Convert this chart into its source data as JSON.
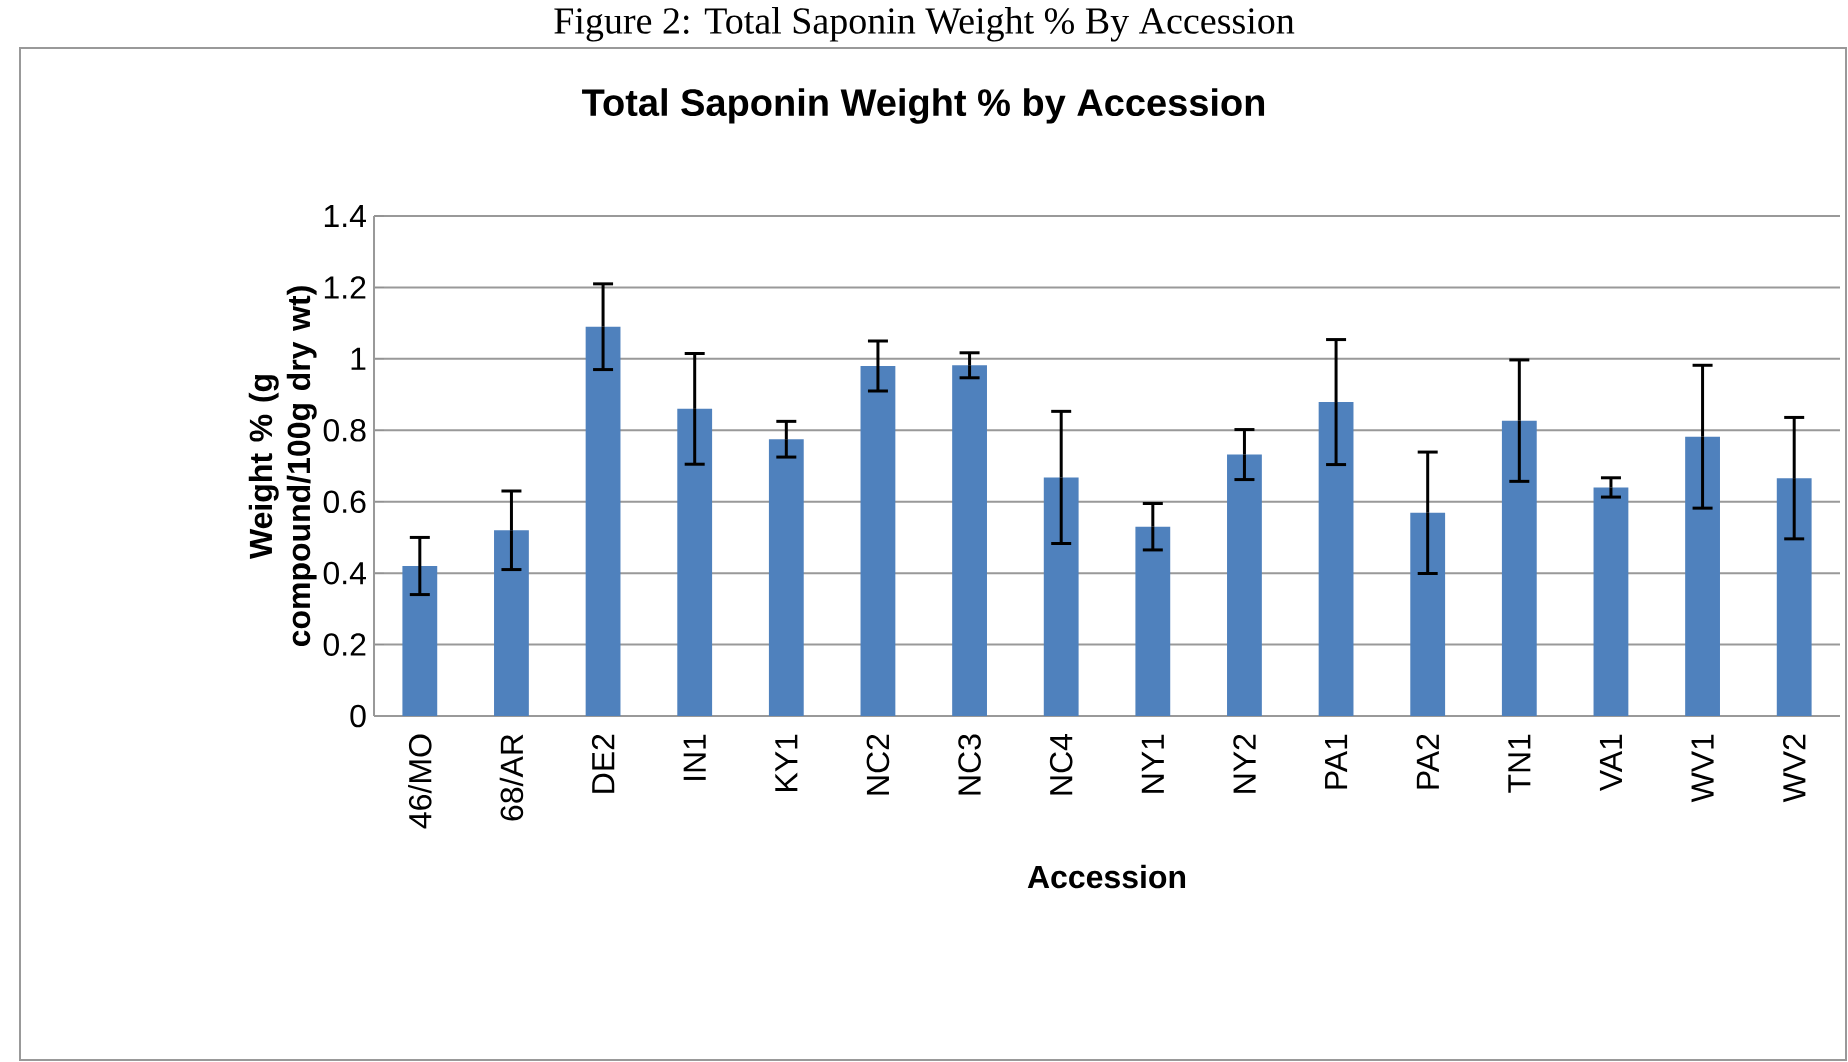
{
  "chart_data": {
    "type": "bar",
    "title": "Total Saponin Weight % by Accession",
    "xlabel": "Accession",
    "ylabel": "Weight %  (g compound/100g dry wt)",
    "annotations": [
      "Figure 2: Total Saponin Weight % By Accession"
    ],
    "categories": [
      "46/MO",
      "68/AR",
      "DE2",
      "IN1",
      "KY1",
      "NC2",
      "NC3",
      "NC4",
      "NY1",
      "NY2",
      "PA1",
      "PA2",
      "TN1",
      "VA1",
      "WV1",
      "WV2"
    ],
    "values": [
      0.42,
      0.52,
      1.09,
      0.86,
      0.775,
      0.98,
      0.982,
      0.668,
      0.53,
      0.732,
      0.879,
      0.569,
      0.827,
      0.64,
      0.782,
      0.666
    ],
    "errors": [
      0.08,
      0.11,
      0.12,
      0.155,
      0.05,
      0.07,
      0.035,
      0.185,
      0.065,
      0.07,
      0.175,
      0.17,
      0.17,
      0.027,
      0.2,
      0.17
    ],
    "color": "#4f81bd",
    "ylim": [
      0,
      1.4
    ],
    "yticks": [
      0,
      0.2,
      0.4,
      0.6,
      0.8,
      1,
      1.2,
      1.4
    ],
    "grid": "y"
  }
}
